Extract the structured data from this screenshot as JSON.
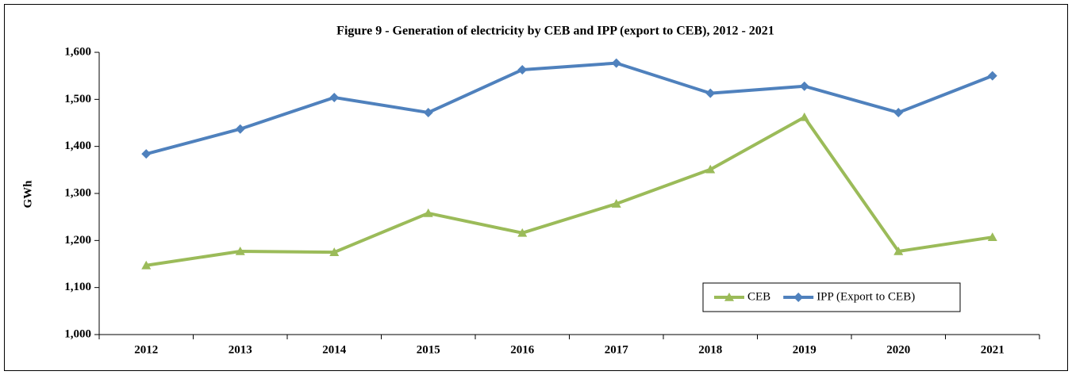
{
  "chart_data": {
    "type": "line",
    "title": "Figure 9 - Generation of electricity by CEB and IPP (export to CEB), 2012 - 2021",
    "y_label": "GWh",
    "categories": [
      "2012",
      "2013",
      "2014",
      "2015",
      "2016",
      "2017",
      "2018",
      "2019",
      "2020",
      "2021"
    ],
    "series": [
      {
        "name": "CEB",
        "color": "#9bbb59",
        "marker": "triangle",
        "values": [
          1147,
          1177,
          1175,
          1258,
          1216,
          1278,
          1351,
          1462,
          1177,
          1207
        ]
      },
      {
        "name": "IPP (Export to CEB)",
        "color": "#4f81bd",
        "marker": "diamond",
        "values": [
          1384,
          1437,
          1504,
          1472,
          1563,
          1577,
          1513,
          1528,
          1472,
          1550
        ]
      }
    ],
    "ylim": [
      1000,
      1600
    ],
    "yticks": [
      {
        "value": 1000,
        "label": "1,000"
      },
      {
        "value": 1100,
        "label": "1,100"
      },
      {
        "value": 1200,
        "label": "1,200"
      },
      {
        "value": 1300,
        "label": "1,300"
      },
      {
        "value": 1400,
        "label": "1,400"
      },
      {
        "value": 1500,
        "label": "1,500"
      },
      {
        "value": 1600,
        "label": "1,600"
      }
    ],
    "grid": false,
    "legend": "bottom-right"
  }
}
